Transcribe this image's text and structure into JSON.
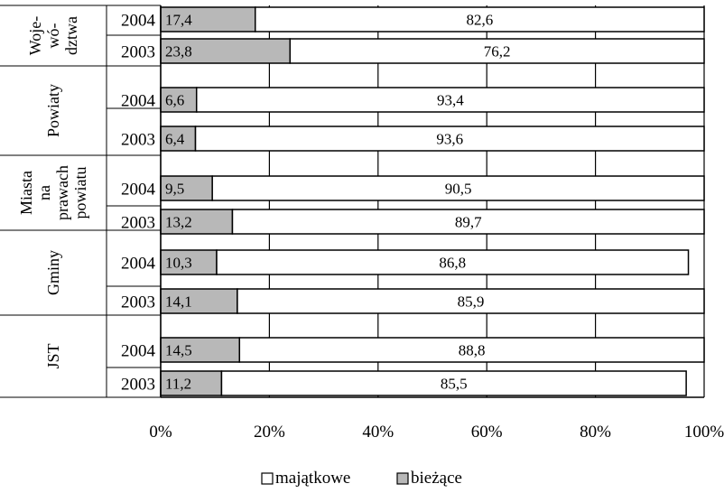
{
  "chart_data": {
    "type": "bar",
    "orientation": "horizontal",
    "stacked": "percent",
    "groups": [
      {
        "label_lines": [
          "Woje-",
          "wó-",
          "dztwa"
        ],
        "years": [
          "2004",
          "2003"
        ]
      },
      {
        "label_lines": [
          "Powiaty"
        ],
        "years": [
          "2004",
          "2003"
        ]
      },
      {
        "label_lines": [
          "Miasta",
          "na",
          "prawach",
          "powiatu"
        ],
        "years": [
          "2004",
          "2003"
        ]
      },
      {
        "label_lines": [
          "Gminy"
        ],
        "years": [
          "2004",
          "2003"
        ]
      },
      {
        "label_lines": [
          "JST"
        ],
        "years": [
          "2004",
          "2003"
        ]
      }
    ],
    "series": [
      {
        "name": "bieżące",
        "color": "#b8b8b8",
        "values": [
          17.4,
          23.8,
          6.6,
          6.4,
          9.5,
          13.2,
          10.3,
          14.1,
          14.5,
          11.2
        ],
        "labels": [
          "17,4",
          "23,8",
          "6,6",
          "6,4",
          "9,5",
          "13,2",
          "10,3",
          "14,1",
          "14,5",
          "11,2"
        ]
      },
      {
        "name": "majątkowe",
        "color": "#ffffff",
        "values": [
          82.6,
          76.2,
          93.4,
          93.6,
          90.5,
          89.7,
          86.8,
          85.9,
          88.8,
          85.5
        ],
        "labels": [
          "82,6",
          "76,2",
          "93,4",
          "93,6",
          "90,5",
          "89,7",
          "86,8",
          "85,9",
          "88,8",
          "85,5"
        ]
      }
    ],
    "x_ticks": [
      "0%",
      "20%",
      "40%",
      "60%",
      "80%",
      "100%"
    ],
    "xlim": [
      0,
      100
    ],
    "grid": true,
    "legend_position": "bottom",
    "legend": [
      {
        "name": "majątkowe",
        "color": "#ffffff"
      },
      {
        "name": "bieżące",
        "color": "#b8b8b8"
      }
    ]
  }
}
